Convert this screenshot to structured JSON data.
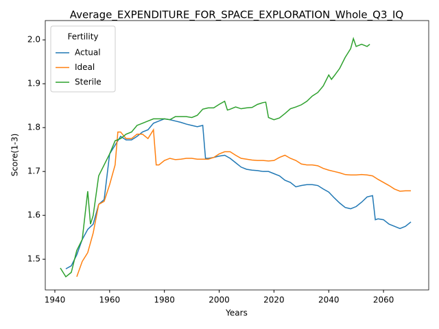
{
  "chart_data": {
    "type": "line",
    "title": "Average_EXPENDITURE_FOR_SPACE_EXPLORATION_Whole_Q3_IQ",
    "x_label": "Years",
    "y_label": "Score(1-3)",
    "legend_title": "Fertility",
    "legend": "upper left",
    "xlim": [
      1936.5,
      2076.5
    ],
    "xticks": [
      1940,
      1960,
      1980,
      2000,
      2020,
      2040,
      2060
    ],
    "ylim": [
      1.43,
      2.044
    ],
    "yticks": [
      1.5,
      1.6,
      1.7,
      1.8,
      1.9,
      {
        "value": 2.0,
        "label": "2.0"
      }
    ],
    "series": [
      {
        "name": "Actual",
        "color": "#1f77b4",
        "x": [
          1944,
          1946,
          1948,
          1950,
          1952,
          1954,
          1956,
          1958,
          1960,
          1962,
          1964,
          1966,
          1968,
          1970,
          1972,
          1974,
          1976,
          1978,
          1980,
          1982,
          1984,
          1986,
          1988,
          1990,
          1992,
          1994,
          1995,
          1996,
          1998,
          2000,
          2002,
          2004,
          2006,
          2008,
          2010,
          2012,
          2014,
          2016,
          2018,
          2020,
          2022,
          2024,
          2026,
          2028,
          2030,
          2032,
          2034,
          2036,
          2038,
          2040,
          2042,
          2044,
          2046,
          2048,
          2050,
          2052,
          2054,
          2056,
          2057,
          2058,
          2060,
          2062,
          2064,
          2066,
          2068,
          2070
        ],
        "values": [
          1.478,
          1.485,
          1.51,
          1.545,
          1.568,
          1.58,
          1.625,
          1.636,
          1.74,
          1.76,
          1.78,
          1.772,
          1.772,
          1.78,
          1.79,
          1.795,
          1.81,
          1.815,
          1.82,
          1.818,
          1.815,
          1.812,
          1.808,
          1.805,
          1.802,
          1.805,
          1.73,
          1.73,
          1.732,
          1.735,
          1.737,
          1.73,
          1.72,
          1.71,
          1.705,
          1.703,
          1.702,
          1.7,
          1.7,
          1.695,
          1.69,
          1.68,
          1.675,
          1.665,
          1.668,
          1.67,
          1.67,
          1.668,
          1.66,
          1.653,
          1.64,
          1.628,
          1.618,
          1.615,
          1.62,
          1.63,
          1.642,
          1.645,
          1.59,
          1.592,
          1.59,
          1.58,
          1.575,
          1.57,
          1.575,
          1.585
        ]
      },
      {
        "name": "Ideal",
        "color": "#ff7f0e",
        "x": [
          1948,
          1950,
          1952,
          1954,
          1956,
          1958,
          1960,
          1962,
          1963,
          1964,
          1966,
          1968,
          1970,
          1972,
          1974,
          1976,
          1977,
          1978,
          1980,
          1982,
          1984,
          1986,
          1988,
          1990,
          1992,
          1994,
          1996,
          1998,
          2000,
          2002,
          2004,
          2006,
          2008,
          2010,
          2012,
          2014,
          2016,
          2018,
          2020,
          2022,
          2024,
          2026,
          2028,
          2030,
          2032,
          2034,
          2036,
          2038,
          2040,
          2042,
          2044,
          2046,
          2048,
          2050,
          2052,
          2054,
          2056,
          2058,
          2060,
          2062,
          2064,
          2066,
          2068,
          2070
        ],
        "values": [
          1.46,
          1.495,
          1.515,
          1.56,
          1.625,
          1.632,
          1.67,
          1.715,
          1.79,
          1.79,
          1.775,
          1.775,
          1.785,
          1.785,
          1.775,
          1.795,
          1.715,
          1.715,
          1.725,
          1.73,
          1.727,
          1.728,
          1.73,
          1.73,
          1.728,
          1.728,
          1.728,
          1.732,
          1.74,
          1.745,
          1.745,
          1.737,
          1.73,
          1.728,
          1.726,
          1.725,
          1.725,
          1.724,
          1.725,
          1.732,
          1.737,
          1.73,
          1.725,
          1.717,
          1.715,
          1.715,
          1.713,
          1.707,
          1.703,
          1.7,
          1.697,
          1.693,
          1.692,
          1.692,
          1.693,
          1.692,
          1.69,
          1.682,
          1.675,
          1.668,
          1.66,
          1.655,
          1.656,
          1.656
        ]
      },
      {
        "name": "Sterile",
        "color": "#2ca02c",
        "x": [
          1942,
          1944,
          1946,
          1948,
          1950,
          1952,
          1953,
          1954,
          1956,
          1958,
          1960,
          1962,
          1964,
          1966,
          1968,
          1970,
          1972,
          1974,
          1976,
          1978,
          1980,
          1982,
          1984,
          1986,
          1988,
          1990,
          1992,
          1994,
          1996,
          1998,
          2000,
          2002,
          2003,
          2004,
          2006,
          2008,
          2010,
          2012,
          2014,
          2016,
          2017,
          2018,
          2020,
          2022,
          2024,
          2026,
          2028,
          2030,
          2032,
          2034,
          2036,
          2038,
          2040,
          2041,
          2042,
          2044,
          2046,
          2048,
          2049,
          2050,
          2052,
          2054,
          2055
        ],
        "values": [
          1.48,
          1.46,
          1.47,
          1.52,
          1.545,
          1.655,
          1.58,
          1.6,
          1.69,
          1.715,
          1.74,
          1.77,
          1.775,
          1.785,
          1.79,
          1.805,
          1.81,
          1.815,
          1.82,
          1.82,
          1.82,
          1.818,
          1.825,
          1.825,
          1.825,
          1.823,
          1.828,
          1.842,
          1.845,
          1.845,
          1.853,
          1.86,
          1.84,
          1.842,
          1.847,
          1.843,
          1.845,
          1.846,
          1.853,
          1.857,
          1.858,
          1.823,
          1.818,
          1.822,
          1.832,
          1.843,
          1.847,
          1.852,
          1.86,
          1.872,
          1.88,
          1.895,
          1.92,
          1.91,
          1.918,
          1.935,
          1.96,
          1.98,
          2.003,
          1.985,
          1.99,
          1.985,
          1.99
        ]
      }
    ]
  }
}
